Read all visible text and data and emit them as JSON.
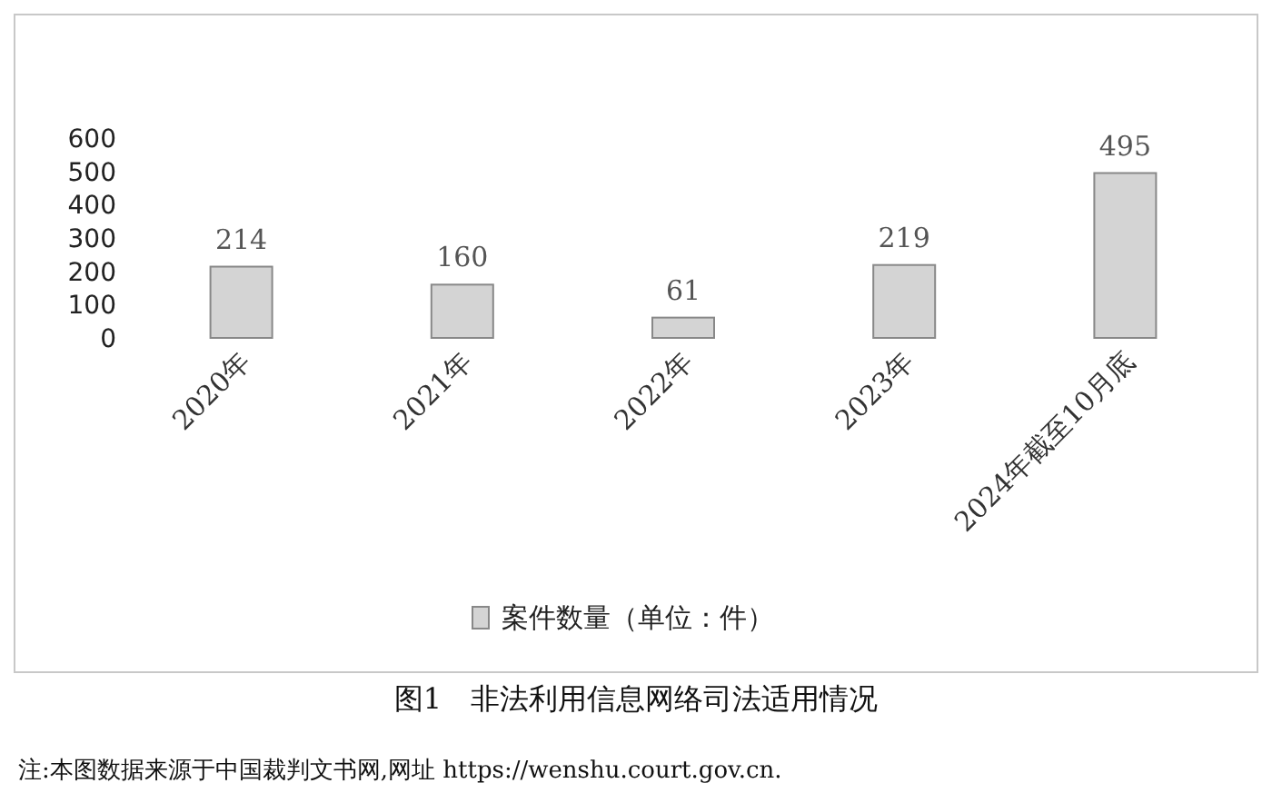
{
  "chart_data": {
    "type": "bar",
    "title": "图1　非法利用信息网络司法适用情况",
    "categories": [
      "2020年",
      "2021年",
      "2022年",
      "2023年",
      "2024年截至10月底"
    ],
    "series": [
      {
        "name": "案件数量（单位：件）",
        "color": "#d4d4d4",
        "values": [
          214,
          160,
          61,
          219,
          495
        ]
      }
    ],
    "ylim": [
      0,
      600
    ],
    "yticks": [
      0,
      100,
      200,
      300,
      400,
      500,
      600
    ],
    "data_labels": true,
    "legend": "bottom",
    "grid": false,
    "annotations": [
      "注:本图数据来源于中国裁判文书网,网址 https://wenshu.court.gov.cn."
    ]
  }
}
